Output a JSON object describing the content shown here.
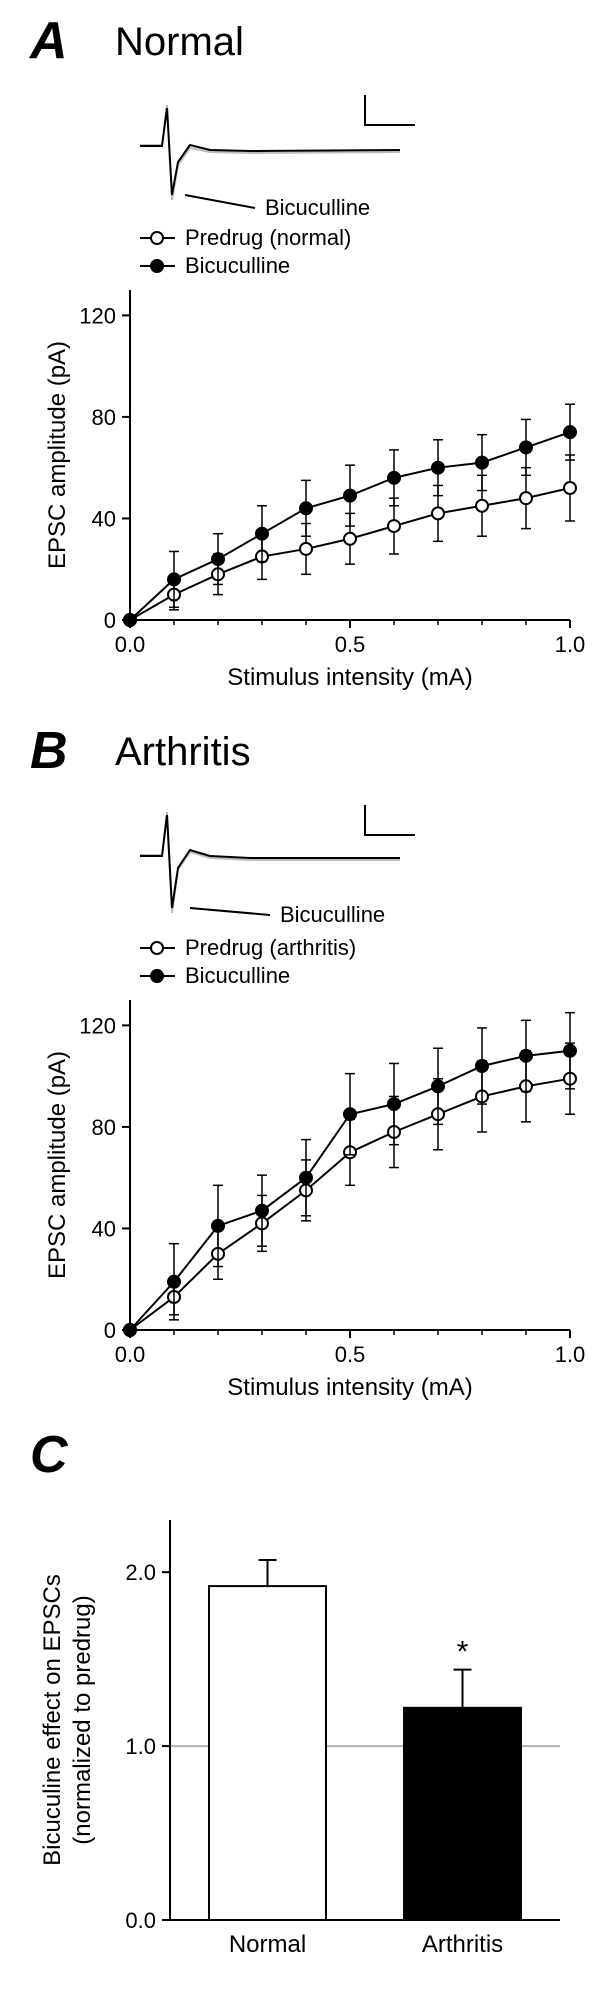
{
  "panelA": {
    "label": "A",
    "title": "Normal",
    "trace_label": "Bicuculline",
    "chart": {
      "type": "line",
      "xlabel": "Stimulus intensity (mA)",
      "ylabel": "EPSC amplitude (pA)",
      "xlim": [
        0,
        1.0
      ],
      "ylim": [
        0,
        130
      ],
      "xticks": [
        0.0,
        0.5,
        1.0
      ],
      "xtick_labels": [
        "0.0",
        "0.5",
        "1.0"
      ],
      "yticks": [
        0,
        40,
        80,
        120
      ],
      "ytick_labels": [
        "0",
        "40",
        "80",
        "120"
      ],
      "minor_xticks": [
        0.1,
        0.2,
        0.3,
        0.4,
        0.6,
        0.7,
        0.8,
        0.9
      ],
      "legend": [
        {
          "label": "Predrug (normal)",
          "marker_fill": "#ffffff",
          "marker_stroke": "#000000"
        },
        {
          "label": "Bicuculline",
          "marker_fill": "#000000",
          "marker_stroke": "#000000"
        }
      ],
      "series": [
        {
          "name": "predrug",
          "marker_fill": "#ffffff",
          "marker_stroke": "#000000",
          "line_color": "#000000",
          "x": [
            0,
            0.1,
            0.2,
            0.3,
            0.4,
            0.5,
            0.6,
            0.7,
            0.8,
            0.9,
            1.0
          ],
          "y": [
            0,
            10,
            18,
            25,
            28,
            32,
            37,
            42,
            45,
            48,
            52
          ],
          "err": [
            0,
            6,
            8,
            9,
            10,
            10,
            11,
            11,
            12,
            12,
            13
          ]
        },
        {
          "name": "bicuculline",
          "marker_fill": "#000000",
          "marker_stroke": "#000000",
          "line_color": "#000000",
          "x": [
            0,
            0.1,
            0.2,
            0.3,
            0.4,
            0.5,
            0.6,
            0.7,
            0.8,
            0.9,
            1.0
          ],
          "y": [
            0,
            16,
            24,
            34,
            44,
            49,
            56,
            60,
            62,
            68,
            74
          ],
          "err": [
            0,
            11,
            10,
            11,
            11,
            12,
            11,
            11,
            11,
            11,
            11
          ]
        }
      ],
      "marker_radius": 6,
      "line_width": 2,
      "axis_color": "#000000",
      "background": "#ffffff"
    }
  },
  "panelB": {
    "label": "B",
    "title": "Arthritis",
    "trace_label": "Bicuculline",
    "chart": {
      "type": "line",
      "xlabel": "Stimulus intensity (mA)",
      "ylabel": "EPSC amplitude (pA)",
      "xlim": [
        0,
        1.0
      ],
      "ylim": [
        0,
        130
      ],
      "xticks": [
        0.0,
        0.5,
        1.0
      ],
      "xtick_labels": [
        "0.0",
        "0.5",
        "1.0"
      ],
      "yticks": [
        0,
        40,
        80,
        120
      ],
      "ytick_labels": [
        "0",
        "40",
        "80",
        "120"
      ],
      "minor_xticks": [
        0.1,
        0.2,
        0.3,
        0.4,
        0.6,
        0.7,
        0.8,
        0.9
      ],
      "legend": [
        {
          "label": "Predrug (arthritis)",
          "marker_fill": "#ffffff",
          "marker_stroke": "#000000"
        },
        {
          "label": "Bicuculline",
          "marker_fill": "#000000",
          "marker_stroke": "#000000"
        }
      ],
      "series": [
        {
          "name": "predrug",
          "marker_fill": "#ffffff",
          "marker_stroke": "#000000",
          "line_color": "#000000",
          "x": [
            0,
            0.1,
            0.2,
            0.3,
            0.4,
            0.5,
            0.6,
            0.7,
            0.8,
            0.9,
            1.0
          ],
          "y": [
            0,
            13,
            30,
            42,
            55,
            70,
            78,
            85,
            92,
            96,
            99
          ],
          "err": [
            0,
            7,
            10,
            11,
            12,
            13,
            14,
            14,
            14,
            14,
            14
          ]
        },
        {
          "name": "bicuculline",
          "marker_fill": "#000000",
          "marker_stroke": "#000000",
          "line_color": "#000000",
          "x": [
            0,
            0.1,
            0.2,
            0.3,
            0.4,
            0.5,
            0.6,
            0.7,
            0.8,
            0.9,
            1.0
          ],
          "y": [
            0,
            19,
            41,
            47,
            60,
            85,
            89,
            96,
            104,
            108,
            110
          ],
          "err": [
            0,
            15,
            16,
            14,
            15,
            16,
            16,
            15,
            15,
            14,
            15
          ]
        }
      ],
      "marker_radius": 6,
      "line_width": 2,
      "axis_color": "#000000",
      "background": "#ffffff"
    }
  },
  "panelC": {
    "label": "C",
    "chart": {
      "type": "bar",
      "ylabel_line1": "Bicuculine effect on EPSCs",
      "ylabel_line2": "(normalized to predrug)",
      "ylim": [
        0,
        2.3
      ],
      "yticks": [
        0,
        1.0,
        2.0
      ],
      "ytick_labels": [
        "0.0",
        "1.0",
        "2.0"
      ],
      "baseline": 1.0,
      "baseline_color": "#b0b0b0",
      "bars": [
        {
          "label": "Normal",
          "value": 1.92,
          "err": 0.15,
          "fill": "#ffffff",
          "stroke": "#000000",
          "sig": ""
        },
        {
          "label": "Arthritis",
          "value": 1.22,
          "err": 0.22,
          "fill": "#000000",
          "stroke": "#000000",
          "sig": "*"
        }
      ],
      "bar_width": 0.6,
      "axis_color": "#000000",
      "sig_fontsize": 30
    }
  }
}
